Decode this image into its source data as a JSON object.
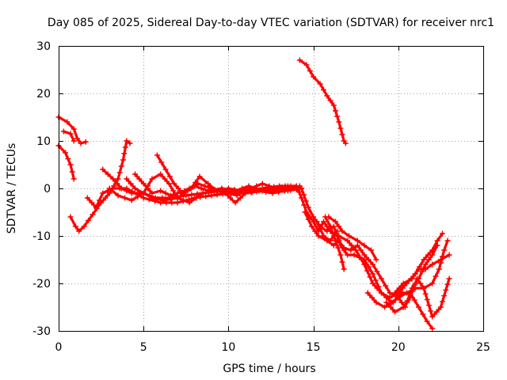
{
  "chart_data": {
    "type": "scatter",
    "title": "Day 085 of 2025, Sidereal Day-to-day VTEC variation (SDTVAR) for receiver nrc1",
    "xlabel": "GPS time / hours",
    "ylabel": "SDTVAR / TECUs",
    "xlim": [
      0,
      25
    ],
    "ylim": [
      -30,
      30
    ],
    "xticks": [
      0,
      5,
      10,
      15,
      20,
      25
    ],
    "yticks": [
      -30,
      -20,
      -10,
      0,
      10,
      20,
      30
    ],
    "grid": true,
    "marker": "plus",
    "color": "#ff0000",
    "series": [
      {
        "name": "trace-1",
        "points": [
          [
            0,
            15
          ],
          [
            0.5,
            14
          ],
          [
            0.9,
            12.5
          ],
          [
            1.1,
            10.5
          ],
          [
            1.3,
            9.5
          ],
          [
            1.6,
            9.8
          ]
        ]
      },
      {
        "name": "trace-2",
        "points": [
          [
            0.3,
            12
          ],
          [
            0.7,
            11.5
          ],
          [
            0.9,
            10
          ]
        ]
      },
      {
        "name": "trace-3",
        "points": [
          [
            0,
            9
          ],
          [
            0.4,
            7.5
          ],
          [
            0.7,
            5
          ],
          [
            0.9,
            2
          ]
        ]
      },
      {
        "name": "trace-4",
        "points": [
          [
            0.7,
            -6
          ],
          [
            1,
            -8
          ],
          [
            1.2,
            -9
          ],
          [
            1.5,
            -8
          ],
          [
            2,
            -5.5
          ],
          [
            2.5,
            -3
          ],
          [
            3,
            -1
          ],
          [
            3.5,
            2
          ],
          [
            3.8,
            6
          ],
          [
            4,
            10
          ],
          [
            4.2,
            9.5
          ]
        ]
      },
      {
        "name": "trace-5",
        "points": [
          [
            1.7,
            -2
          ],
          [
            2.2,
            -4
          ],
          [
            2.6,
            -1
          ],
          [
            3.2,
            0
          ],
          [
            4,
            0
          ],
          [
            5,
            -2
          ],
          [
            6,
            -3
          ],
          [
            7,
            -3
          ],
          [
            8,
            -2
          ],
          [
            9,
            -1.5
          ],
          [
            10,
            -1
          ],
          [
            11,
            -1
          ],
          [
            12,
            -0.5
          ],
          [
            13,
            -0.5
          ],
          [
            14,
            0
          ]
        ]
      },
      {
        "name": "trace-6",
        "points": [
          [
            2.6,
            4
          ],
          [
            3.2,
            2
          ],
          [
            3.7,
            0
          ],
          [
            4.3,
            -1
          ],
          [
            5,
            -1
          ],
          [
            5.7,
            -2
          ],
          [
            6.5,
            -2
          ],
          [
            7.5,
            -1.5
          ],
          [
            8.5,
            -1
          ],
          [
            9.5,
            -0.5
          ],
          [
            10.5,
            -1
          ],
          [
            11.5,
            -0.5
          ],
          [
            12.5,
            0
          ],
          [
            13.5,
            -0.5
          ],
          [
            14.2,
            0.5
          ]
        ]
      },
      {
        "name": "trace-7",
        "points": [
          [
            3,
            0
          ],
          [
            3.5,
            -1.5
          ],
          [
            4.3,
            -2.5
          ],
          [
            5,
            -1
          ],
          [
            5.5,
            2
          ],
          [
            6,
            3
          ],
          [
            6.5,
            1
          ],
          [
            7,
            -2
          ],
          [
            7.7,
            -3
          ],
          [
            8.5,
            -1
          ],
          [
            9.5,
            -0.5
          ],
          [
            10.5,
            -1.5
          ],
          [
            11,
            -0.5
          ],
          [
            12,
            0
          ],
          [
            13,
            0.5
          ],
          [
            14,
            0.5
          ]
        ]
      },
      {
        "name": "trace-8",
        "points": [
          [
            5.8,
            7
          ],
          [
            6.3,
            4
          ],
          [
            6.8,
            1
          ],
          [
            7.3,
            -1
          ],
          [
            7.8,
            0
          ],
          [
            8.3,
            2.5
          ],
          [
            8.8,
            1
          ],
          [
            9.3,
            -0.5
          ],
          [
            10,
            0
          ],
          [
            10.7,
            -0.5
          ],
          [
            11.3,
            0
          ],
          [
            12,
            1
          ],
          [
            12.8,
            0
          ],
          [
            13.5,
            0.5
          ],
          [
            14.3,
            0
          ]
        ]
      },
      {
        "name": "trace-9",
        "points": [
          [
            4,
            2
          ],
          [
            4.5,
            0
          ],
          [
            5,
            -1
          ],
          [
            5.5,
            -2
          ],
          [
            6.2,
            -2.5
          ],
          [
            7,
            -2
          ],
          [
            7.6,
            -0.5
          ],
          [
            8.2,
            1
          ],
          [
            9,
            0
          ],
          [
            9.8,
            -1
          ],
          [
            10.4,
            -3
          ],
          [
            11,
            -1
          ],
          [
            11.8,
            -0.5
          ],
          [
            12.6,
            -1
          ],
          [
            13.3,
            -0.5
          ],
          [
            14,
            -0.2
          ]
        ]
      },
      {
        "name": "trace-10",
        "points": [
          [
            4.5,
            3
          ],
          [
            5,
            1
          ],
          [
            5.5,
            -1
          ],
          [
            6,
            -0.5
          ],
          [
            6.6,
            -1.5
          ],
          [
            7.4,
            -0.5
          ],
          [
            8,
            0.5
          ],
          [
            8.8,
            -0.5
          ],
          [
            9.6,
            0
          ],
          [
            10.4,
            -0.5
          ],
          [
            11.2,
            0.5
          ],
          [
            12,
            -0.5
          ],
          [
            12.8,
            0
          ],
          [
            13.6,
            0
          ],
          [
            14.2,
            0
          ]
        ]
      },
      {
        "name": "trace-11",
        "points": [
          [
            14.2,
            27
          ],
          [
            14.6,
            26
          ],
          [
            15,
            23.5
          ],
          [
            15.4,
            22
          ],
          [
            15.8,
            19.5
          ],
          [
            16.2,
            17.5
          ],
          [
            16.5,
            14
          ],
          [
            16.8,
            10
          ],
          [
            16.9,
            9.5
          ]
        ]
      },
      {
        "name": "trace-12",
        "points": [
          [
            14,
            0.5
          ],
          [
            14.3,
            -2
          ],
          [
            14.6,
            -5
          ],
          [
            15,
            -7
          ],
          [
            15.3,
            -9
          ],
          [
            15.6,
            -7
          ],
          [
            16,
            -9
          ],
          [
            16.5,
            -10
          ],
          [
            17,
            -11
          ],
          [
            17.5,
            -13
          ],
          [
            18,
            -16
          ],
          [
            18.5,
            -20
          ],
          [
            19,
            -22
          ],
          [
            19.5,
            -23
          ],
          [
            20,
            -22
          ],
          [
            20.5,
            -20
          ],
          [
            21,
            -18
          ],
          [
            21.5,
            -15
          ],
          [
            22,
            -13
          ],
          [
            22.3,
            -11
          ],
          [
            22.6,
            -9.5
          ]
        ]
      },
      {
        "name": "trace-13",
        "points": [
          [
            14.3,
            0
          ],
          [
            14.7,
            -4
          ],
          [
            15,
            -6
          ],
          [
            15.4,
            -8
          ],
          [
            15.8,
            -9
          ],
          [
            16.2,
            -8
          ],
          [
            16.6,
            -12
          ],
          [
            17,
            -14
          ],
          [
            17.4,
            -14
          ],
          [
            18,
            -15
          ],
          [
            18.5,
            -18
          ],
          [
            19,
            -22
          ],
          [
            19.6,
            -24
          ],
          [
            20,
            -23
          ],
          [
            20.5,
            -22
          ],
          [
            21,
            -21
          ],
          [
            21.5,
            -21
          ],
          [
            22,
            -20
          ],
          [
            22.4,
            -17
          ],
          [
            22.7,
            -13
          ],
          [
            22.9,
            -11
          ]
        ]
      },
      {
        "name": "trace-14",
        "points": [
          [
            14.5,
            -5
          ],
          [
            14.9,
            -8
          ],
          [
            15.3,
            -10
          ],
          [
            15.8,
            -11
          ],
          [
            16.2,
            -12
          ],
          [
            16.5,
            -11
          ],
          [
            16.8,
            -12.5
          ],
          [
            17.2,
            -13
          ],
          [
            17.6,
            -12
          ],
          [
            18,
            -14
          ],
          [
            18.5,
            -16
          ],
          [
            19,
            -19
          ],
          [
            19.5,
            -22
          ],
          [
            20,
            -23
          ],
          [
            20.4,
            -25
          ],
          [
            20.8,
            -21
          ],
          [
            21.2,
            -19
          ],
          [
            21.6,
            -16
          ],
          [
            22,
            -14
          ],
          [
            22.3,
            -12
          ]
        ]
      },
      {
        "name": "trace-15",
        "points": [
          [
            15.7,
            -6
          ],
          [
            16,
            -8
          ],
          [
            16.3,
            -11
          ],
          [
            16.6,
            -14
          ],
          [
            16.8,
            -17
          ]
        ]
      },
      {
        "name": "trace-16",
        "points": [
          [
            15.9,
            -6
          ],
          [
            16.3,
            -7
          ],
          [
            16.7,
            -9
          ],
          [
            17.1,
            -10
          ],
          [
            17.6,
            -11
          ],
          [
            18,
            -12
          ],
          [
            18.4,
            -13
          ],
          [
            18.7,
            -15
          ]
        ]
      },
      {
        "name": "trace-17",
        "points": [
          [
            15.2,
            -7
          ],
          [
            15.6,
            -10
          ],
          [
            16,
            -11
          ],
          [
            16.4,
            -9
          ]
        ]
      },
      {
        "name": "trace-18",
        "points": [
          [
            18.2,
            -22
          ],
          [
            18.7,
            -24
          ],
          [
            19.2,
            -25
          ],
          [
            19.7,
            -24
          ],
          [
            20.2,
            -22
          ],
          [
            20.7,
            -22
          ],
          [
            21.2,
            -25
          ],
          [
            21.7,
            -28
          ],
          [
            22,
            -29.5
          ]
        ]
      },
      {
        "name": "trace-19",
        "points": [
          [
            19.3,
            -24
          ],
          [
            19.8,
            -26
          ],
          [
            20.3,
            -25
          ],
          [
            20.7,
            -23
          ],
          [
            21.1,
            -19
          ],
          [
            21.5,
            -21
          ],
          [
            22,
            -27
          ],
          [
            22.5,
            -25
          ],
          [
            23,
            -19
          ]
        ]
      },
      {
        "name": "trace-20",
        "points": [
          [
            19.8,
            -22
          ],
          [
            20.3,
            -20
          ],
          [
            20.8,
            -19
          ],
          [
            21.2,
            -17
          ],
          [
            21.6,
            -17
          ],
          [
            22,
            -16
          ],
          [
            22.5,
            -15
          ],
          [
            23,
            -14
          ]
        ]
      }
    ]
  }
}
